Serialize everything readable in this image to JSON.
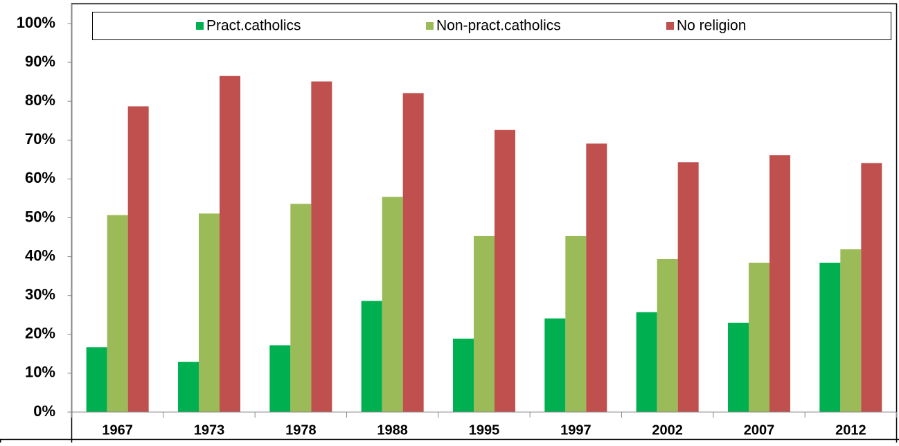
{
  "chart_data": {
    "type": "bar",
    "categories": [
      "1967",
      "1973",
      "1978",
      "1988",
      "1995",
      "1997",
      "2002",
      "2007",
      "2012"
    ],
    "series": [
      {
        "name": "Pract.catholics",
        "color": "#00b050",
        "values": [
          16.7,
          12.9,
          17.2,
          28.6,
          18.9,
          24.1,
          25.7,
          23.0,
          38.4
        ]
      },
      {
        "name": "Non-pract.catholics",
        "color": "#9bbb59",
        "values": [
          50.7,
          51.1,
          53.6,
          55.4,
          45.3,
          45.3,
          39.4,
          38.4,
          41.9
        ]
      },
      {
        "name": "No religion",
        "color": "#c0504d",
        "values": [
          78.7,
          86.5,
          85.1,
          82.1,
          72.6,
          69.1,
          64.3,
          66.1,
          64.1
        ]
      }
    ],
    "ylim": [
      0,
      100
    ],
    "yticks": [
      {
        "value": 0,
        "label": "0%"
      },
      {
        "value": 10,
        "label": "10%"
      },
      {
        "value": 20,
        "label": "20%"
      },
      {
        "value": 30,
        "label": "30%"
      },
      {
        "value": 40,
        "label": "40%"
      },
      {
        "value": 50,
        "label": "50%"
      },
      {
        "value": 60,
        "label": "60%"
      },
      {
        "value": 70,
        "label": "70%"
      },
      {
        "value": 80,
        "label": "80%"
      },
      {
        "value": 90,
        "label": "90%"
      },
      {
        "value": 100,
        "label": "100%"
      }
    ],
    "grid": false,
    "legend": "top"
  }
}
